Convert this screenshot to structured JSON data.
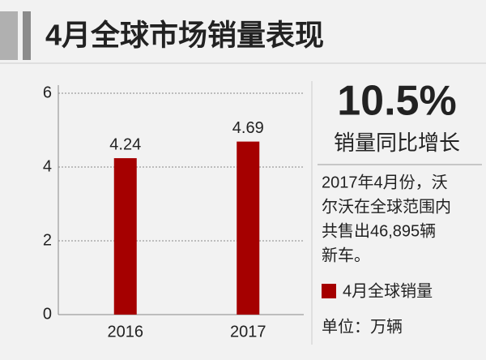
{
  "chart_data": {
    "type": "bar",
    "title": "4月全球市场销量表现",
    "categories": [
      "2016",
      "2017"
    ],
    "series": [
      {
        "name": "4月全球销量",
        "color": "#a50000",
        "values": [
          4.24,
          4.69
        ]
      }
    ],
    "ylim": [
      0,
      6
    ],
    "yticks": [
      0,
      2,
      4,
      6
    ],
    "grid": true,
    "headline": "10.5%",
    "headline_caption": "销量同比增长",
    "note_lines": [
      "2017年4月份，沃",
      "尔沃在全球范围内",
      "共售出46,895辆",
      "新车。"
    ],
    "unit": "单位：万辆"
  }
}
